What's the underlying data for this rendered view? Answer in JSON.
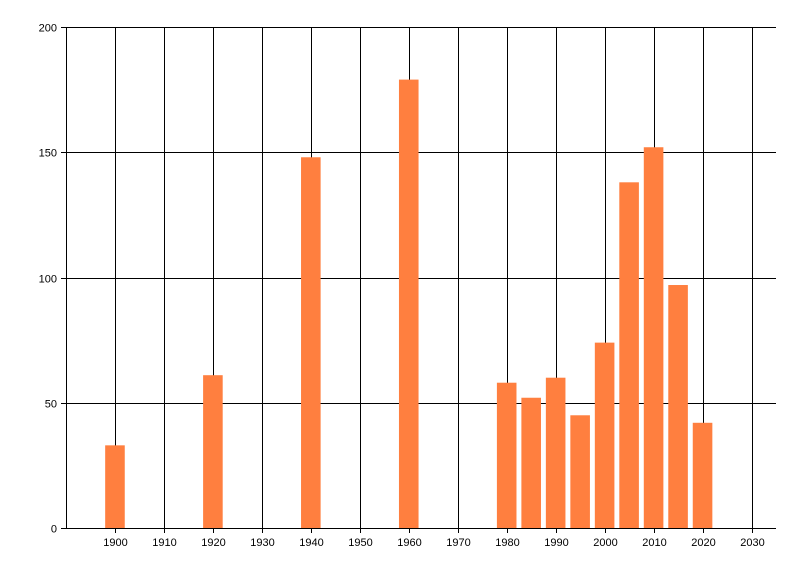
{
  "chart_data": {
    "type": "bar",
    "title": "",
    "xlabel": "",
    "ylabel": "",
    "x": [
      1900,
      1920,
      1940,
      1960,
      1980,
      1985,
      1990,
      1995,
      2000,
      2005,
      2010,
      2015,
      2020
    ],
    "values": [
      33,
      61,
      148,
      179,
      58,
      52,
      60,
      45,
      74,
      138,
      152,
      97,
      42
    ],
    "xlim": [
      1890,
      2035
    ],
    "ylim": [
      0,
      200
    ],
    "x_ticks": [
      1900,
      1910,
      1920,
      1930,
      1940,
      1950,
      1960,
      1970,
      1980,
      1990,
      2000,
      2010,
      2020,
      2030
    ],
    "y_ticks": [
      0,
      50,
      100,
      150,
      200
    ],
    "grid": true,
    "legend": "none",
    "bar_color": "#ff7f3f",
    "grid_color": "#000000",
    "bar_width_years": 4
  }
}
